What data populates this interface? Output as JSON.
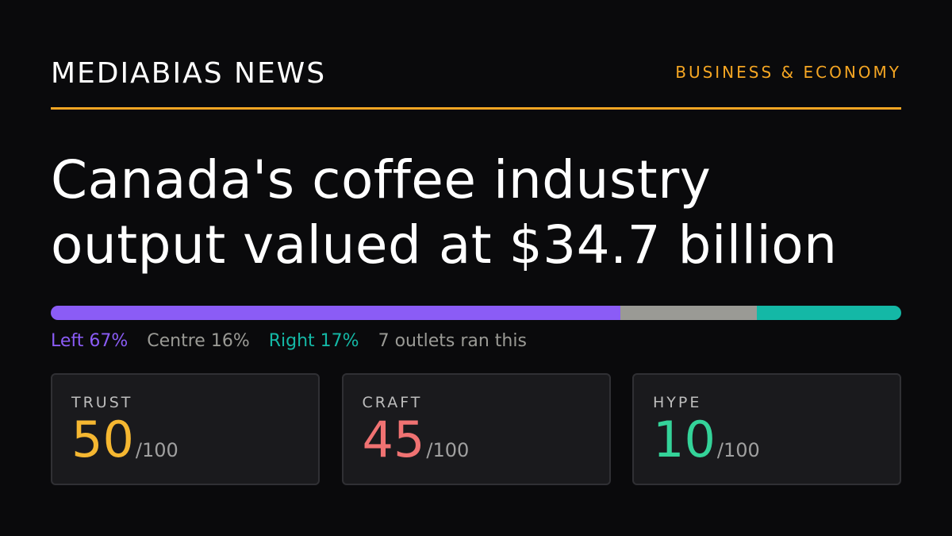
{
  "header": {
    "brand": "MEDIABIAS NEWS",
    "section": "BUSINESS & ECONOMY",
    "accent_color": "#f5a623"
  },
  "headline": {
    "line1": "Canada's coffee industry",
    "line2": "output valued at $34.7 billion"
  },
  "bias": {
    "segments": [
      {
        "key": "left",
        "percent": 67,
        "color": "#8b5cf6"
      },
      {
        "key": "centre",
        "percent": 16,
        "color": "#9a9a95"
      },
      {
        "key": "right",
        "percent": 17,
        "color": "#14b8a6"
      }
    ],
    "left_label": "Left 67%",
    "centre_label": "Centre 16%",
    "right_label": "Right 17%",
    "outlets_label": "7 outlets ran this"
  },
  "scores": [
    {
      "label": "TRUST",
      "value": "50",
      "max": "/100",
      "color": "#f5b731"
    },
    {
      "label": "CRAFT",
      "value": "45",
      "max": "/100",
      "color": "#f07272"
    },
    {
      "label": "HYPE",
      "value": "10",
      "max": "/100",
      "color": "#34d399"
    }
  ]
}
